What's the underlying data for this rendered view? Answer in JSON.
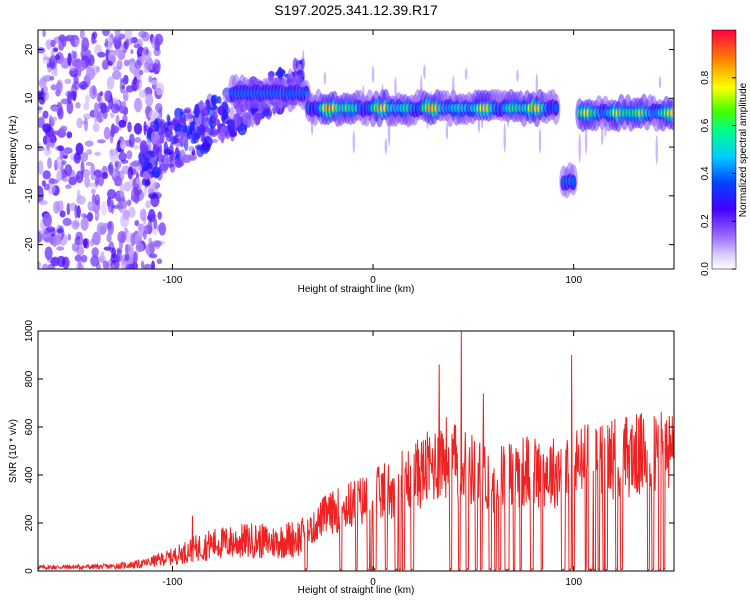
{
  "figure_title": "S197.2025.341.12.39.R17",
  "colors": {
    "snr_line": "#ee2222",
    "frame": "#000000",
    "background": "#ffffff"
  },
  "chart_data": [
    {
      "type": "heatmap",
      "title": "S197.2025.341.12.39.R17",
      "xlabel": "Height of straight line (km)",
      "ylabel": "Frequency (Hz)",
      "xlim": [
        -167,
        150
      ],
      "ylim": [
        -25,
        24
      ],
      "x_ticks": [
        -100,
        0,
        100
      ],
      "y_ticks": [
        -20,
        -10,
        0,
        10,
        20
      ],
      "colorbar": {
        "label": "Normalized spectral amplitude",
        "range": [
          0,
          1
        ],
        "ticks": [
          0.0,
          0.2,
          0.4,
          0.6,
          0.8
        ],
        "tick_labels": [
          "0.0",
          "0.2",
          "0.4",
          "0.6",
          "0.8"
        ],
        "colormap": [
          "#ffffff",
          "#9966ff",
          "#4400ff",
          "#0044ff",
          "#00ccff",
          "#00ff66",
          "#ffff00",
          "#ff8800",
          "#ff0044"
        ]
      },
      "features": [
        {
          "x_range": [
            -167,
            -105
          ],
          "frequency_range": [
            -25,
            24
          ],
          "amplitude_range": [
            0.05,
            0.25
          ],
          "description": "scattered noise"
        },
        {
          "x_range": [
            -115,
            -35
          ],
          "frequency_range": [
            2,
            18
          ],
          "amplitude_range": [
            0.1,
            0.35
          ],
          "description": "rising band"
        },
        {
          "x_range": [
            -70,
            -32
          ],
          "frequency": 11,
          "amplitude": 0.4
        },
        {
          "x_range": [
            -32,
            92
          ],
          "frequency": 8,
          "amplitude_range": [
            0.3,
            0.95
          ],
          "description": "dominant line"
        },
        {
          "x_range": [
            95,
            101
          ],
          "frequency": -7,
          "amplitude": 0.4
        },
        {
          "x_range": [
            103,
            150
          ],
          "frequency": 7,
          "amplitude_range": [
            0.4,
            0.85
          ]
        }
      ]
    },
    {
      "type": "line",
      "title": "",
      "xlabel": "Height of straight line (km)",
      "ylabel": "SNR (10 * v/v)",
      "xlim": [
        -167,
        150
      ],
      "ylim": [
        0,
        1000
      ],
      "x_ticks": [
        -100,
        0,
        100
      ],
      "y_ticks": [
        0,
        200,
        400,
        600,
        800,
        1000
      ],
      "series": [
        {
          "name": "SNR",
          "color": "#ee2222",
          "envelope_x": [
            -167,
            -130,
            -115,
            -100,
            -90,
            -80,
            -70,
            -60,
            -50,
            -40,
            -30,
            -25,
            -20,
            -10,
            0,
            10,
            20,
            30,
            35,
            40,
            45,
            50,
            60,
            70,
            80,
            90,
            100,
            110,
            120,
            130,
            140,
            150
          ],
          "envelope_y": [
            20,
            25,
            40,
            80,
            120,
            150,
            160,
            170,
            160,
            180,
            200,
            260,
            280,
            320,
            350,
            400,
            450,
            500,
            550,
            520,
            500,
            480,
            430,
            470,
            480,
            470,
            500,
            530,
            540,
            550,
            550,
            560
          ],
          "peaks": [
            {
              "x": 44,
              "y": 1000
            },
            {
              "x": 33,
              "y": 860
            },
            {
              "x": 99,
              "y": 900
            },
            {
              "x": 55,
              "y": 740
            },
            {
              "x": -90,
              "y": 230
            }
          ],
          "note": "from about -35 km onward the signal repeatedly drops to ~0 (gaps)"
        }
      ]
    }
  ]
}
